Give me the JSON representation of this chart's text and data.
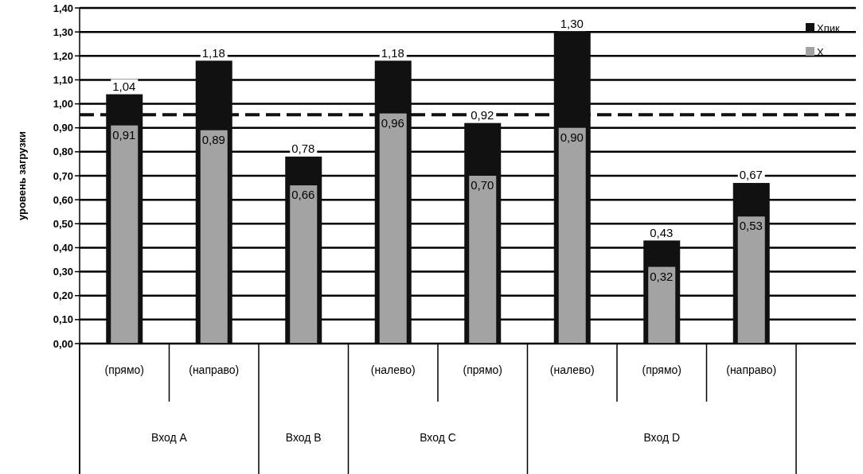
{
  "chart_data": {
    "type": "bar",
    "ylabel": "уровень загрузки",
    "categories": [
      "(прямо)",
      "(направо)",
      null,
      "(налево)",
      "(прямо)",
      "(налево)",
      "(прямо)",
      "(направо)"
    ],
    "annotations": [
      "Вход A",
      "Вход B",
      "Вход C",
      "Вход D"
    ],
    "series": [
      {
        "name": "Xпик",
        "color": "#111111",
        "values": [
          1.04,
          1.18,
          0.78,
          1.18,
          0.92,
          1.3,
          0.43,
          0.67
        ],
        "value_labels": [
          "1,04",
          "1,18",
          "0,78",
          "1,18",
          "0,92",
          "1,30",
          "0,43",
          "0,67"
        ]
      },
      {
        "name": "X",
        "color": "#a3a3a3",
        "values": [
          0.91,
          0.89,
          0.66,
          0.96,
          0.7,
          0.9,
          0.32,
          0.53
        ],
        "value_labels": [
          "0,91",
          "0,89",
          "0,66",
          "0,96",
          "0,70",
          "0,90",
          "0,32",
          "0,53"
        ]
      }
    ],
    "ylim": [
      0,
      1.4
    ],
    "yticks": [
      {
        "value": 0,
        "label": "0,00"
      },
      {
        "value": 0.1,
        "label": "0,10"
      },
      {
        "value": 0.2,
        "label": "0,20"
      },
      {
        "value": 0.3,
        "label": "0,30"
      },
      {
        "value": 0.4,
        "label": "0,40"
      },
      {
        "value": 0.5,
        "label": "0,50"
      },
      {
        "value": 0.6,
        "label": "0,60"
      },
      {
        "value": 0.7,
        "label": "0,70"
      },
      {
        "value": 0.8,
        "label": "0,80"
      },
      {
        "value": 0.9,
        "label": "0,90"
      },
      {
        "value": 1.0,
        "label": "1,00"
      },
      {
        "value": 1.1,
        "label": "1,10"
      },
      {
        "value": 1.2,
        "label": "1,20"
      },
      {
        "value": 1.3,
        "label": "1,30"
      },
      {
        "value": 1.4,
        "label": "1,40"
      }
    ],
    "grid": "y",
    "legend": "top right",
    "ref_lines": [
      {
        "axis": "y",
        "value": 0.955,
        "line_style": "dashed",
        "color": "#111111"
      }
    ]
  }
}
